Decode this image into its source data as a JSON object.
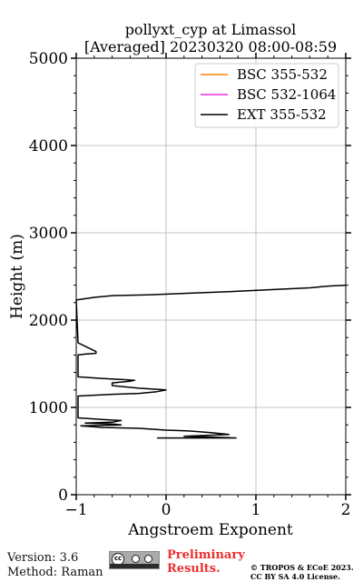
{
  "chart_data": {
    "type": "line",
    "title": "pollyxt_cyp at Limassol",
    "subtitle": "[Averaged] 20230320 08:00-08:59",
    "xlabel": "Angstroem Exponent",
    "ylabel": "Height (m)",
    "xlim": [
      -1,
      2
    ],
    "ylim": [
      0,
      5000
    ],
    "x_ticks": [
      "−1",
      "0",
      "1",
      "2"
    ],
    "x_tick_values": [
      -1,
      0,
      1,
      2
    ],
    "y_ticks": [
      "0",
      "1000",
      "2000",
      "3000",
      "4000",
      "5000"
    ],
    "y_tick_values": [
      0,
      1000,
      2000,
      3000,
      4000,
      5000
    ],
    "grid": true,
    "legend_position": "top-right",
    "series": [
      {
        "name": "BSC 355-532",
        "color": "#ff7f0e",
        "points": []
      },
      {
        "name": "BSC 532-1064",
        "color": "#e531e5",
        "points": []
      },
      {
        "name": "EXT 355-532",
        "color": "#000000",
        "points": [
          [
            -0.1,
            650
          ],
          [
            0.78,
            650
          ],
          [
            0.2,
            670
          ],
          [
            0.7,
            690
          ],
          [
            0.5,
            710
          ],
          [
            0.25,
            730
          ],
          [
            0.0,
            740
          ],
          [
            -0.3,
            760
          ],
          [
            -0.7,
            770
          ],
          [
            -0.95,
            790
          ],
          [
            -0.5,
            800
          ],
          [
            -0.6,
            810
          ],
          [
            -0.9,
            820
          ],
          [
            -0.6,
            830
          ],
          [
            -0.5,
            850
          ],
          [
            -0.7,
            860
          ],
          [
            -0.98,
            880
          ],
          [
            -0.98,
            1130
          ],
          [
            -0.6,
            1150
          ],
          [
            -0.3,
            1160
          ],
          [
            -0.1,
            1180
          ],
          [
            0.0,
            1200
          ],
          [
            -0.3,
            1220
          ],
          [
            -0.6,
            1250
          ],
          [
            -0.6,
            1280
          ],
          [
            -0.4,
            1300
          ],
          [
            -0.35,
            1310
          ],
          [
            -0.5,
            1320
          ],
          [
            -0.7,
            1330
          ],
          [
            -0.98,
            1350
          ],
          [
            -0.98,
            1600
          ],
          [
            -0.9,
            1610
          ],
          [
            -0.78,
            1620
          ],
          [
            -0.78,
            1640
          ],
          [
            -0.9,
            1700
          ],
          [
            -0.98,
            1740
          ],
          [
            -1.0,
            2230
          ],
          [
            -0.8,
            2260
          ],
          [
            -0.6,
            2280
          ],
          [
            -0.2,
            2290
          ],
          [
            0.3,
            2310
          ],
          [
            0.8,
            2330
          ],
          [
            1.2,
            2350
          ],
          [
            1.6,
            2370
          ],
          [
            1.8,
            2390
          ],
          [
            2.0,
            2400
          ]
        ]
      }
    ]
  },
  "footer": {
    "version": "Version: 3.6",
    "method": "Method: Raman",
    "preliminary_line1": "Preliminary",
    "preliminary_line2": "Results.",
    "copyright_line1": "© TROPOS & ECoE 2023.",
    "copyright_line2": "CC BY SA 4.0 License.",
    "license_badge_text": "cc BY SA"
  }
}
